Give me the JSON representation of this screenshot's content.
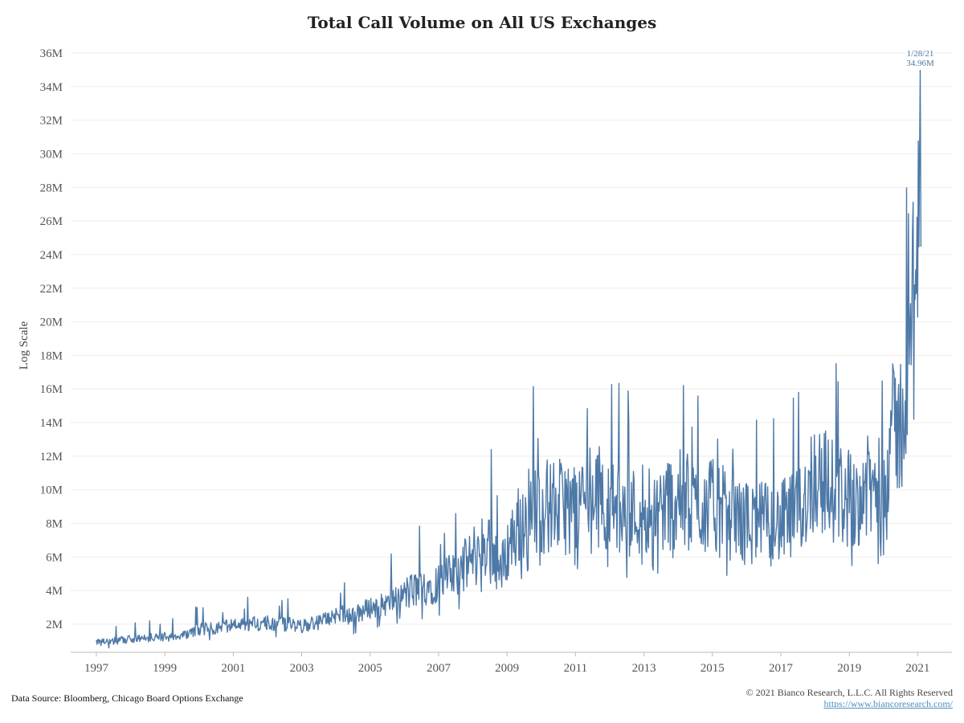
{
  "chart_data": {
    "type": "line",
    "title": "Total Call Volume on All US Exchanges",
    "xlabel": "",
    "ylabel": "Log Scale",
    "x_ticks": [
      "1997",
      "1999",
      "2001",
      "2003",
      "2005",
      "2007",
      "2009",
      "2011",
      "2013",
      "2015",
      "2017",
      "2019",
      "2021"
    ],
    "y_ticks": [
      "2M",
      "4M",
      "6M",
      "8M",
      "10M",
      "12M",
      "14M",
      "16M",
      "18M",
      "20M",
      "22M",
      "24M",
      "26M",
      "28M",
      "30M",
      "32M",
      "34M",
      "36M"
    ],
    "ylim": [
      0,
      36000000
    ],
    "xlim": [
      "1996-04-01",
      "2022-01-01"
    ],
    "grid": "horizontal",
    "line_color": "#4e79a7",
    "annotation": {
      "date_label": "1/28/21",
      "value_label": "34.96M",
      "x": "2021-01-28",
      "y": 34960000
    },
    "series": [
      {
        "x": [
          "1997-01",
          "1997-07",
          "1998-01",
          "1998-07",
          "1999-01",
          "1999-07",
          "2000-01",
          "2000-07",
          "2001-01",
          "2001-07",
          "2002-01",
          "2002-07",
          "2003-01",
          "2003-07",
          "2004-01",
          "2004-07",
          "2005-01",
          "2005-07",
          "2006-01",
          "2006-07",
          "2007-01",
          "2007-07",
          "2008-01",
          "2008-07",
          "2008-11",
          "2009-01",
          "2009-07",
          "2010-01",
          "2010-07",
          "2011-01",
          "2011-07",
          "2012-01",
          "2012-07",
          "2013-01",
          "2013-07",
          "2014-01",
          "2014-07",
          "2015-01",
          "2015-07",
          "2016-01",
          "2016-07",
          "2017-01",
          "2017-07",
          "2018-01",
          "2018-07",
          "2019-01",
          "2019-07",
          "2020-01",
          "2020-03",
          "2020-07",
          "2020-10",
          "2021-01-28"
        ],
        "y": [
          900000,
          1000000,
          1100000,
          1200000,
          1250000,
          1300000,
          1700000,
          1800000,
          1900000,
          2000000,
          2100000,
          2000000,
          1900000,
          2100000,
          2600000,
          2500000,
          3000000,
          3200000,
          3800000,
          4200000,
          4500000,
          5000000,
          6000000,
          7000000,
          5000000,
          6500000,
          8500000,
          9000000,
          9000000,
          9000000,
          10000000,
          9000000,
          8500000,
          9000000,
          9000000,
          9500000,
          9000000,
          9000000,
          8500000,
          8000000,
          8000000,
          8000000,
          8500000,
          11000000,
          10000000,
          9500000,
          10000000,
          10000000,
          13000000,
          14000000,
          16000000,
          34960000
        ]
      }
    ]
  },
  "footer": {
    "source": "Data Source: Bloomberg, Chicago Board Options Exchange",
    "copyright": "© 2021 Bianco Research, L.L.C. All Rights Reserved",
    "url": "https://www.biancoresearch.com/"
  }
}
